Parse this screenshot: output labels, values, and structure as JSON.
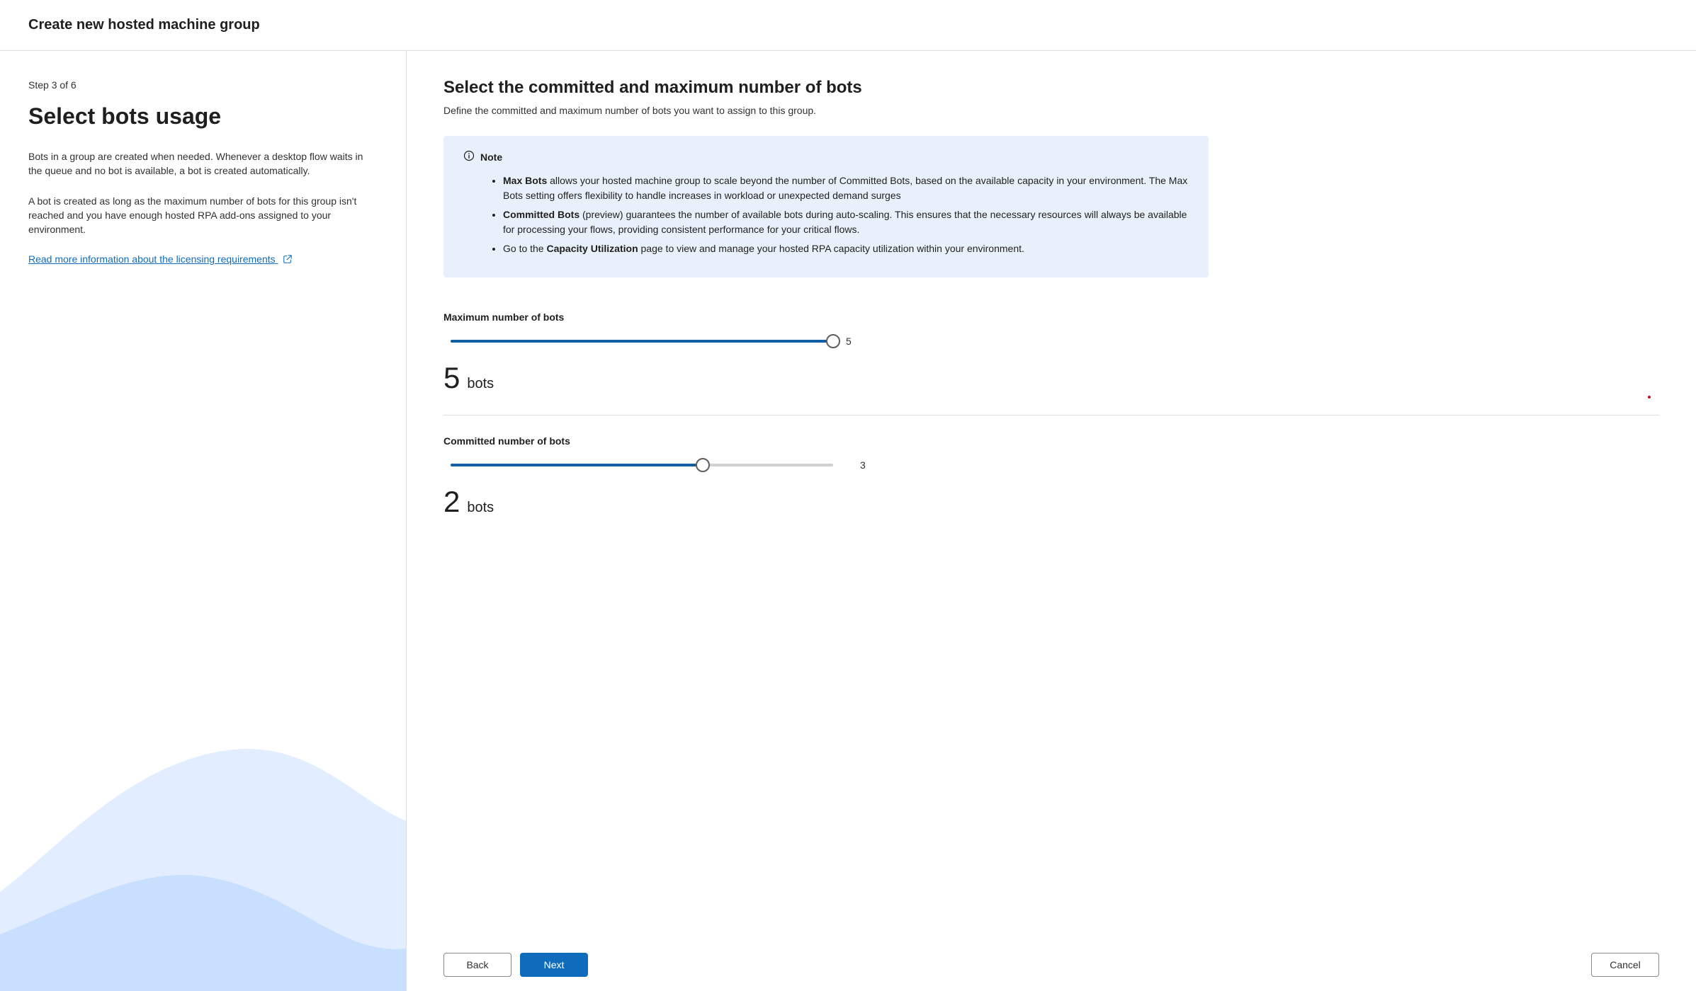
{
  "header": {
    "title": "Create new hosted machine group"
  },
  "sidebar": {
    "step": "Step 3 of 6",
    "heading": "Select bots usage",
    "para1": "Bots in a group are created when needed. Whenever a desktop flow waits in the queue and no bot is available, a bot is created automatically.",
    "para2": "A bot is created as long as the maximum number of bots for this group isn't reached and you have enough hosted RPA add-ons assigned to your environment.",
    "link": "Read more information about the licensing requirements"
  },
  "main": {
    "heading": "Select the committed and maximum number of bots",
    "sub": "Define the committed and maximum number of bots you want to assign to this group.",
    "note": {
      "label": "Note",
      "item1_bold": "Max Bots",
      "item1_rest": " allows your hosted machine group to scale beyond the number of Committed Bots, based on the available capacity in your environment. The Max Bots setting offers flexibility to handle increases in workload or unexpected demand surges",
      "item2_bold": "Committed Bots",
      "item2_rest": " (preview) guarantees the number of available bots during auto-scaling. This ensures that the necessary resources will always be available for processing your flows, providing consistent performance for your critical flows.",
      "item3_pre": "Go to the ",
      "item3_bold": "Capacity Utilization",
      "item3_rest": " page to view and manage your hosted RPA capacity utilization within your environment."
    },
    "maxSlider": {
      "label": "Maximum number of bots",
      "value": 5,
      "max": 5,
      "maxLabel": "5",
      "display": "5",
      "unit": "bots",
      "fillPercent": 100,
      "thumbPercent": 100,
      "colors": {
        "fill": "#115ea3",
        "bg": "#d2d0ce",
        "thumbBorder": "#605e5c"
      }
    },
    "committedSlider": {
      "label": "Committed number of bots",
      "value": 2,
      "max": 3,
      "maxLabel": "3",
      "display": "2",
      "unit": "bots",
      "fillPercent": 66,
      "thumbPercent": 66,
      "colors": {
        "fill": "#115ea3",
        "bg": "#d2d0ce",
        "thumbBorder": "#605e5c"
      }
    }
  },
  "footer": {
    "back": "Back",
    "next": "Next",
    "cancel": "Cancel"
  },
  "colors": {
    "noteBg": "#e8f1fb",
    "link": "#0f6cbd",
    "primary": "#0f6cbd",
    "border": "#e1dfdd"
  }
}
